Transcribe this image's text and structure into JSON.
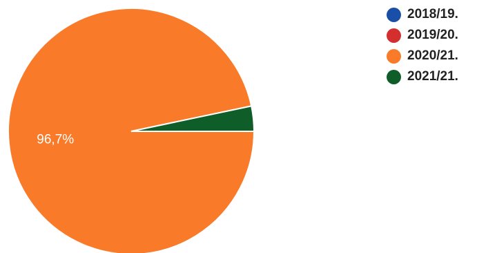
{
  "chart_data": {
    "type": "pie",
    "slices": [
      {
        "label": "2018/19.",
        "value": 0.0,
        "color": "#1a4fa8"
      },
      {
        "label": "2019/20.",
        "value": 0.0,
        "color": "#d32f2f"
      },
      {
        "label": "2020/21.",
        "value": 96.7,
        "color": "#f97b2a"
      },
      {
        "label": "2021/21.",
        "value": 3.3,
        "color": "#0f5e2a"
      }
    ],
    "data_labels": [
      {
        "slice": "2020/21.",
        "text": "96,7%"
      }
    ],
    "legend_position": "top-right"
  }
}
